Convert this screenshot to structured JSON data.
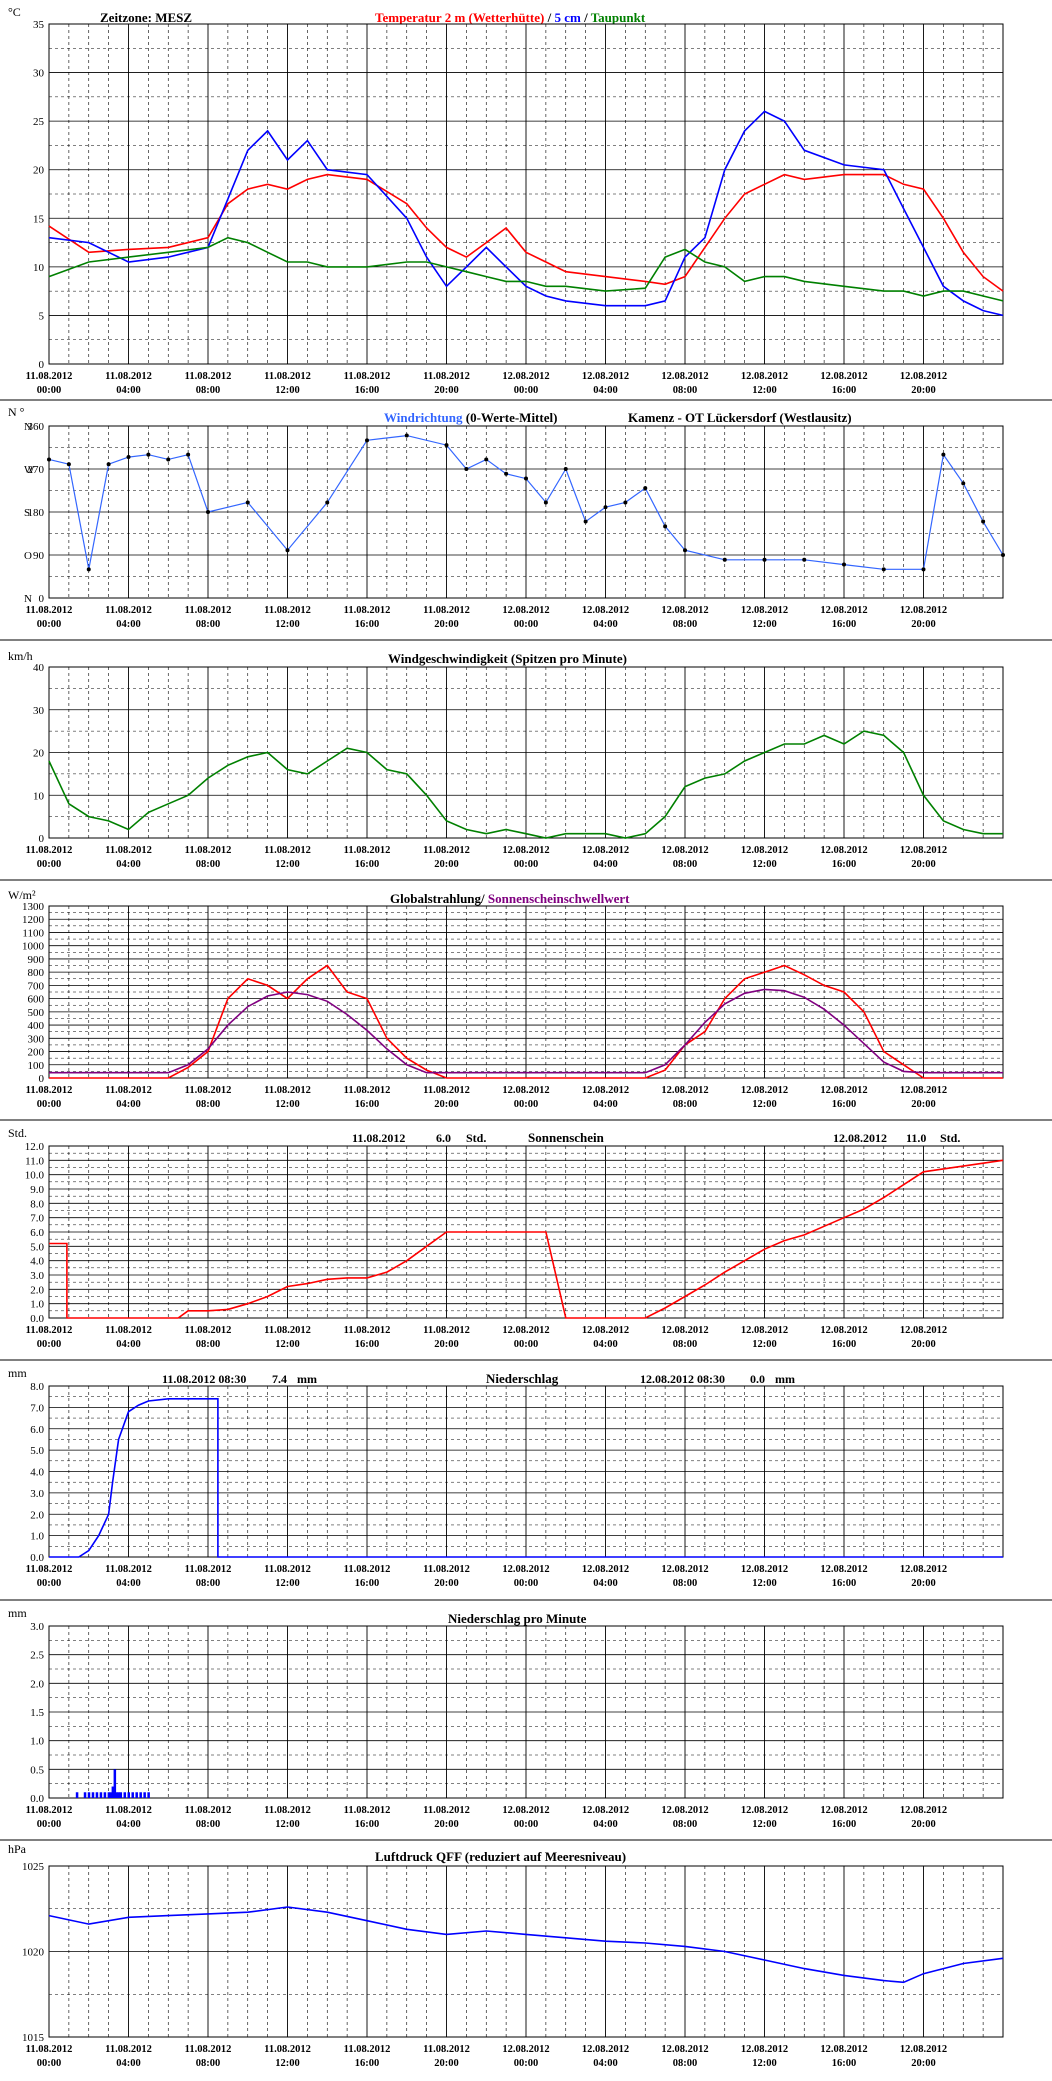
{
  "panel_titles": {
    "timezone": "Zeitzone: MESZ",
    "temp_title_a": "Temperatur 2 m (Wetterhütte)",
    "temp_title_sep1": " / ",
    "temp_title_b": "5 cm",
    "temp_title_sep2": " / ",
    "temp_title_c": "Taupunkt",
    "wind_dir_a": "Windrichtung",
    "wind_dir_b": " (0-Werte-Mittel)",
    "station": "Kamenz - OT Lückersdorf (Westlausitz)",
    "wind_speed": "Windgeschwindigkeit (Spitzen pro Minute)",
    "radiation_a": "Globalstrahlung/ ",
    "radiation_b": "Sonnenscheinschwellwert",
    "sunshine": "Sonnenschein",
    "sunshine_day1_date": "11.08.2012",
    "sunshine_day1_val": "6.0",
    "sunshine_day1_unit": "Std.",
    "sunshine_day2_date": "12.08.2012",
    "sunshine_day2_val": "11.0",
    "sunshine_day2_unit": "Std.",
    "precip": "Niederschlag",
    "precip_day1_date": "11.08.2012 08:30",
    "precip_day1_val": "7.4",
    "precip_day1_unit": "mm",
    "precip_day2_date": "12.08.2012 08:30",
    "precip_day2_val": "0.0",
    "precip_day2_unit": "mm",
    "precip_min": "Niederschlag pro Minute",
    "pressure": "Luftdruck QFF (reduziert auf Meeresniveau)"
  },
  "units": {
    "temp": "°C",
    "wind_dir": "N °",
    "wind_speed": "km/h",
    "radiation": "W/m²",
    "sunshine": "Std.",
    "precip": "mm",
    "precip_min": "mm",
    "pressure": "hPa"
  },
  "x_ticks": [
    [
      "11.08.2012",
      "00:00"
    ],
    [
      "11.08.2012",
      "04:00"
    ],
    [
      "11.08.2012",
      "08:00"
    ],
    [
      "11.08.2012",
      "12:00"
    ],
    [
      "11.08.2012",
      "16:00"
    ],
    [
      "11.08.2012",
      "20:00"
    ],
    [
      "12.08.2012",
      "00:00"
    ],
    [
      "12.08.2012",
      "04:00"
    ],
    [
      "12.08.2012",
      "08:00"
    ],
    [
      "12.08.2012",
      "12:00"
    ],
    [
      "12.08.2012",
      "16:00"
    ],
    [
      "12.08.2012",
      "20:00"
    ]
  ],
  "colors": {
    "red": "#ff0000",
    "blue": "#0000ff",
    "green": "#008000",
    "lightblue": "#3366ff",
    "purple": "#800080",
    "black": "#000000"
  },
  "chart_data": [
    {
      "type": "line",
      "title": "Temperatur 2 m (Wetterhütte) / 5 cm / Taupunkt",
      "ylabel": "°C",
      "ylim": [
        0,
        35
      ],
      "yticks": [
        "0",
        "5",
        "10",
        "15",
        "20",
        "25",
        "30",
        "35"
      ],
      "x_hours": [
        0,
        2,
        4,
        6,
        8,
        9,
        10,
        11,
        12,
        13,
        14,
        16,
        18,
        19,
        20,
        21,
        22,
        23,
        24,
        25,
        26,
        28,
        30,
        31,
        32,
        33,
        34,
        35,
        36,
        37,
        38,
        40,
        42,
        43,
        44,
        45,
        46,
        47,
        48
      ],
      "series": [
        {
          "name": "Temperatur 2 m (Wetterhütte)",
          "color": "#ff0000",
          "values": [
            14.2,
            11.5,
            11.8,
            12.0,
            13.0,
            16.5,
            18.0,
            18.5,
            18.0,
            19.0,
            19.5,
            19.0,
            16.5,
            14.0,
            12.0,
            11.0,
            12.5,
            14.0,
            11.5,
            10.5,
            9.5,
            9.0,
            8.5,
            8.2,
            9.0,
            12.0,
            15.0,
            17.5,
            18.5,
            19.5,
            19.0,
            19.5,
            19.5,
            18.5,
            18.0,
            15.0,
            11.5,
            9.0,
            7.5
          ]
        },
        {
          "name": "5 cm",
          "color": "#0000ff",
          "values": [
            13.0,
            12.5,
            10.5,
            11.0,
            12.0,
            17.0,
            22.0,
            24.0,
            21.0,
            23.0,
            20.0,
            19.5,
            15.0,
            11.0,
            8.0,
            10.0,
            12.0,
            10.0,
            8.0,
            7.0,
            6.5,
            6.0,
            6.0,
            6.5,
            11.0,
            13.0,
            20.0,
            24.0,
            26.0,
            25.0,
            22.0,
            20.5,
            20.0,
            16.0,
            12.0,
            8.0,
            6.5,
            5.5,
            5.0
          ]
        },
        {
          "name": "Taupunkt",
          "color": "#008000",
          "values": [
            9.0,
            10.5,
            11.0,
            11.5,
            12.0,
            13.0,
            12.5,
            11.5,
            10.5,
            10.5,
            10.0,
            10.0,
            10.5,
            10.5,
            10.0,
            9.5,
            9.0,
            8.5,
            8.5,
            8.0,
            8.0,
            7.5,
            7.8,
            11.0,
            11.8,
            10.5,
            10.0,
            8.5,
            9.0,
            9.0,
            8.5,
            8.0,
            7.5,
            7.5,
            7.0,
            7.5,
            7.5,
            7.0,
            6.5
          ]
        }
      ]
    },
    {
      "type": "scatter",
      "title": "Windrichtung (0-Werte-Mittel)",
      "ylabel": "N °",
      "ylim": [
        0,
        360
      ],
      "yticks": [
        "0",
        "90",
        "180",
        "270",
        "360"
      ],
      "ylabels_dir": [
        "N",
        "O",
        "S",
        "W",
        "N"
      ],
      "x_hours": [
        0,
        1,
        2,
        3,
        4,
        5,
        6,
        7,
        8,
        10,
        12,
        14,
        16,
        18,
        20,
        21,
        22,
        23,
        24,
        25,
        26,
        27,
        28,
        29,
        30,
        31,
        32,
        34,
        36,
        38,
        40,
        42,
        44,
        45,
        46,
        47,
        48
      ],
      "values": [
        290,
        280,
        60,
        280,
        295,
        300,
        290,
        300,
        180,
        200,
        100,
        200,
        330,
        340,
        320,
        270,
        290,
        260,
        250,
        200,
        270,
        160,
        190,
        200,
        230,
        150,
        100,
        80,
        80,
        80,
        70,
        60,
        60,
        300,
        240,
        160,
        90
      ]
    },
    {
      "type": "line",
      "title": "Windgeschwindigkeit (Spitzen pro Minute)",
      "ylabel": "km/h",
      "ylim": [
        0,
        40
      ],
      "yticks": [
        "0",
        "10",
        "20",
        "30",
        "40"
      ],
      "x_hours": [
        0,
        1,
        2,
        3,
        4,
        5,
        6,
        7,
        8,
        9,
        10,
        11,
        12,
        13,
        14,
        15,
        16,
        17,
        18,
        19,
        20,
        21,
        22,
        23,
        24,
        25,
        26,
        27,
        28,
        29,
        30,
        31,
        32,
        33,
        34,
        35,
        36,
        37,
        38,
        39,
        40,
        41,
        42,
        43,
        44,
        45,
        46,
        47,
        48
      ],
      "series": [
        {
          "name": "Windgeschwindigkeit",
          "color": "#008000",
          "values": [
            18,
            8,
            5,
            4,
            2,
            6,
            8,
            10,
            14,
            17,
            19,
            20,
            16,
            15,
            18,
            21,
            20,
            16,
            15,
            10,
            4,
            2,
            1,
            2,
            1,
            0,
            1,
            1,
            1,
            0,
            1,
            5,
            12,
            14,
            15,
            18,
            20,
            22,
            22,
            24,
            22,
            25,
            24,
            20,
            10,
            4,
            2,
            1,
            1
          ]
        }
      ]
    },
    {
      "type": "line",
      "title": "Globalstrahlung/ Sonnenscheinschwellwert",
      "ylabel": "W/m²",
      "ylim": [
        0,
        1300
      ],
      "yticks": [
        "0",
        "100",
        "200",
        "300",
        "400",
        "500",
        "600",
        "700",
        "800",
        "900",
        "1000",
        "1100",
        "1200",
        "1300"
      ],
      "x_hours": [
        0,
        6,
        7,
        8,
        9,
        10,
        11,
        12,
        13,
        14,
        15,
        16,
        17,
        18,
        19,
        20,
        30,
        31,
        32,
        33,
        34,
        35,
        36,
        37,
        38,
        39,
        40,
        41,
        42,
        43,
        44,
        48
      ],
      "series": [
        {
          "name": "Globalstrahlung",
          "color": "#ff0000",
          "values": [
            0,
            0,
            80,
            200,
            600,
            750,
            700,
            600,
            750,
            850,
            650,
            600,
            300,
            150,
            60,
            0,
            0,
            60,
            250,
            350,
            600,
            750,
            800,
            850,
            780,
            700,
            650,
            500,
            200,
            100,
            0,
            0
          ]
        },
        {
          "name": "Sonnenscheinschwellwert",
          "color": "#800080",
          "values": [
            40,
            40,
            100,
            220,
            400,
            540,
            620,
            650,
            630,
            580,
            480,
            360,
            220,
            100,
            40,
            40,
            40,
            100,
            250,
            420,
            560,
            640,
            670,
            660,
            610,
            520,
            400,
            260,
            120,
            50,
            40,
            40
          ]
        }
      ]
    },
    {
      "type": "line",
      "title": "Sonnenschein",
      "ylabel": "Std.",
      "ylim": [
        0,
        12
      ],
      "yticks": [
        "0.0",
        "1.0",
        "2.0",
        "3.0",
        "4.0",
        "5.0",
        "6.0",
        "7.0",
        "8.0",
        "9.0",
        "10.0",
        "11.0",
        "12.0"
      ],
      "x_hours": [
        0,
        0.9,
        0.9,
        6.5,
        7,
        8,
        9,
        10,
        11,
        12,
        13,
        14,
        15,
        16,
        17,
        18,
        19,
        20,
        21,
        22,
        24,
        25,
        26,
        27,
        28,
        29,
        30,
        31,
        32,
        33,
        34,
        35,
        36,
        37,
        38,
        39,
        40,
        41,
        42,
        43,
        44,
        48
      ],
      "series": [
        {
          "name": "Sonnenschein",
          "color": "#ff0000",
          "values": [
            5.2,
            5.2,
            0,
            0,
            0.5,
            0.5,
            0.6,
            1.0,
            1.5,
            2.2,
            2.4,
            2.7,
            2.8,
            2.8,
            3.2,
            4.0,
            5.0,
            6.0,
            6.0,
            6.0,
            6.0,
            6.0,
            0,
            0,
            0,
            0,
            0,
            0.7,
            1.5,
            2.3,
            3.2,
            4.0,
            4.8,
            5.4,
            5.8,
            6.4,
            7.0,
            7.6,
            8.4,
            9.3,
            10.2,
            11.0
          ]
        }
      ]
    },
    {
      "type": "line",
      "title": "Niederschlag",
      "ylabel": "mm",
      "ylim": [
        0,
        8
      ],
      "yticks": [
        "0.0",
        "1.0",
        "2.0",
        "3.0",
        "4.0",
        "5.0",
        "6.0",
        "7.0",
        "8.0"
      ],
      "x_hours": [
        0,
        1.5,
        2,
        2.5,
        3,
        3.2,
        3.5,
        4,
        4.5,
        5,
        6,
        7,
        8,
        8.5,
        8.5,
        48
      ],
      "series": [
        {
          "name": "Niederschlag",
          "color": "#0000ff",
          "values": [
            0,
            0,
            0.3,
            1,
            2,
            3.5,
            5.5,
            6.8,
            7.1,
            7.3,
            7.4,
            7.4,
            7.4,
            7.4,
            0,
            0
          ]
        }
      ]
    },
    {
      "type": "bar",
      "title": "Niederschlag pro Minute",
      "ylabel": "mm",
      "ylim": [
        0,
        3
      ],
      "yticks": [
        "0.0",
        "0.5",
        "1.0",
        "1.5",
        "2.0",
        "2.5",
        "3.0"
      ],
      "x_hours": [
        1.4,
        1.8,
        2.0,
        2.2,
        2.4,
        2.6,
        2.8,
        3.0,
        3.1,
        3.2,
        3.3,
        3.4,
        3.5,
        3.6,
        3.8,
        4.0,
        4.2,
        4.4,
        4.6,
        4.8,
        5.0
      ],
      "values": [
        0.1,
        0.1,
        0.1,
        0.1,
        0.1,
        0.1,
        0.1,
        0.1,
        0.1,
        0.2,
        0.5,
        0.1,
        0.1,
        0.1,
        0.1,
        0.1,
        0.1,
        0.1,
        0.1,
        0.1,
        0.1
      ],
      "series": [
        {
          "name": "Niederschlag pro Minute",
          "color": "#0000ff"
        }
      ]
    },
    {
      "type": "line",
      "title": "Luftdruck QFF (reduziert auf Meeresniveau)",
      "ylabel": "hPa",
      "ylim": [
        1015,
        1025
      ],
      "yticks": [
        "1015",
        "1020",
        "1025"
      ],
      "x_hours": [
        0,
        2,
        4,
        6,
        8,
        10,
        12,
        14,
        16,
        18,
        20,
        22,
        24,
        26,
        28,
        30,
        32,
        34,
        36,
        38,
        40,
        42,
        43,
        44,
        46,
        48
      ],
      "series": [
        {
          "name": "Luftdruck",
          "color": "#0000ff",
          "values": [
            1022.1,
            1021.6,
            1022.0,
            1022.1,
            1022.2,
            1022.3,
            1022.6,
            1022.3,
            1021.8,
            1021.3,
            1021.0,
            1021.2,
            1021.0,
            1020.8,
            1020.6,
            1020.5,
            1020.3,
            1020.0,
            1019.5,
            1019.0,
            1018.6,
            1018.3,
            1018.2,
            1018.7,
            1019.3,
            1019.6
          ]
        }
      ]
    }
  ]
}
